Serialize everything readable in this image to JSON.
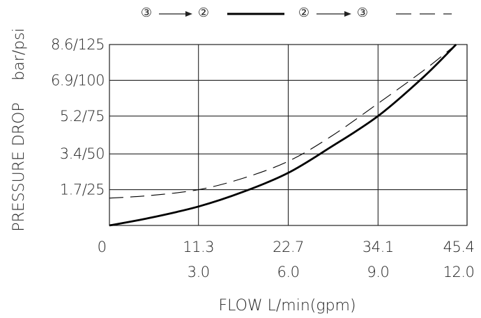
{
  "chart_data": {
    "type": "line",
    "xlabel": "FLOW L/min(gpm)",
    "ylabel": "PRESSURE DROP",
    "ylabel_unit": "bar/psi",
    "x_ticks": [
      {
        "value": 0,
        "primary": "0",
        "secondary": ""
      },
      {
        "value": 11.3,
        "primary": "11.3",
        "secondary": "3.0"
      },
      {
        "value": 22.7,
        "primary": "22.7",
        "secondary": "6.0"
      },
      {
        "value": 34.1,
        "primary": "34.1",
        "secondary": "9.0"
      },
      {
        "value": 45.4,
        "primary": "45.4",
        "secondary": "12.0"
      }
    ],
    "y_ticks": [
      {
        "value": 1.7,
        "label": "1.7/25"
      },
      {
        "value": 3.4,
        "label": "3.4/50"
      },
      {
        "value": 5.2,
        "label": "5.2/75"
      },
      {
        "value": 6.9,
        "label": "6.9/100"
      },
      {
        "value": 8.6,
        "label": "8.6/125"
      }
    ],
    "xlim": [
      0,
      45.4
    ],
    "ylim": [
      0,
      8.6
    ],
    "grid": true,
    "legend": {
      "placement": "top",
      "entries": [
        {
          "from": "③",
          "to": "②",
          "style": "solid"
        },
        {
          "from": "②",
          "to": "③",
          "style": "dashed"
        }
      ]
    },
    "series": [
      {
        "style": "solid",
        "x": [
          0,
          5,
          11.3,
          17,
          22.7,
          28,
          34.1,
          40,
          44.0
        ],
        "y": [
          0,
          0.35,
          0.9,
          1.6,
          2.5,
          3.7,
          5.2,
          7.1,
          8.6
        ]
      },
      {
        "style": "dashed",
        "x": [
          0,
          5,
          11.3,
          17,
          22.7,
          28,
          34.1,
          40,
          44.0
        ],
        "y": [
          1.3,
          1.42,
          1.7,
          2.25,
          3.05,
          4.2,
          5.8,
          7.4,
          8.6
        ]
      }
    ]
  },
  "colors": {
    "line": "#000000",
    "grid": "#222222",
    "text": "#222222"
  }
}
